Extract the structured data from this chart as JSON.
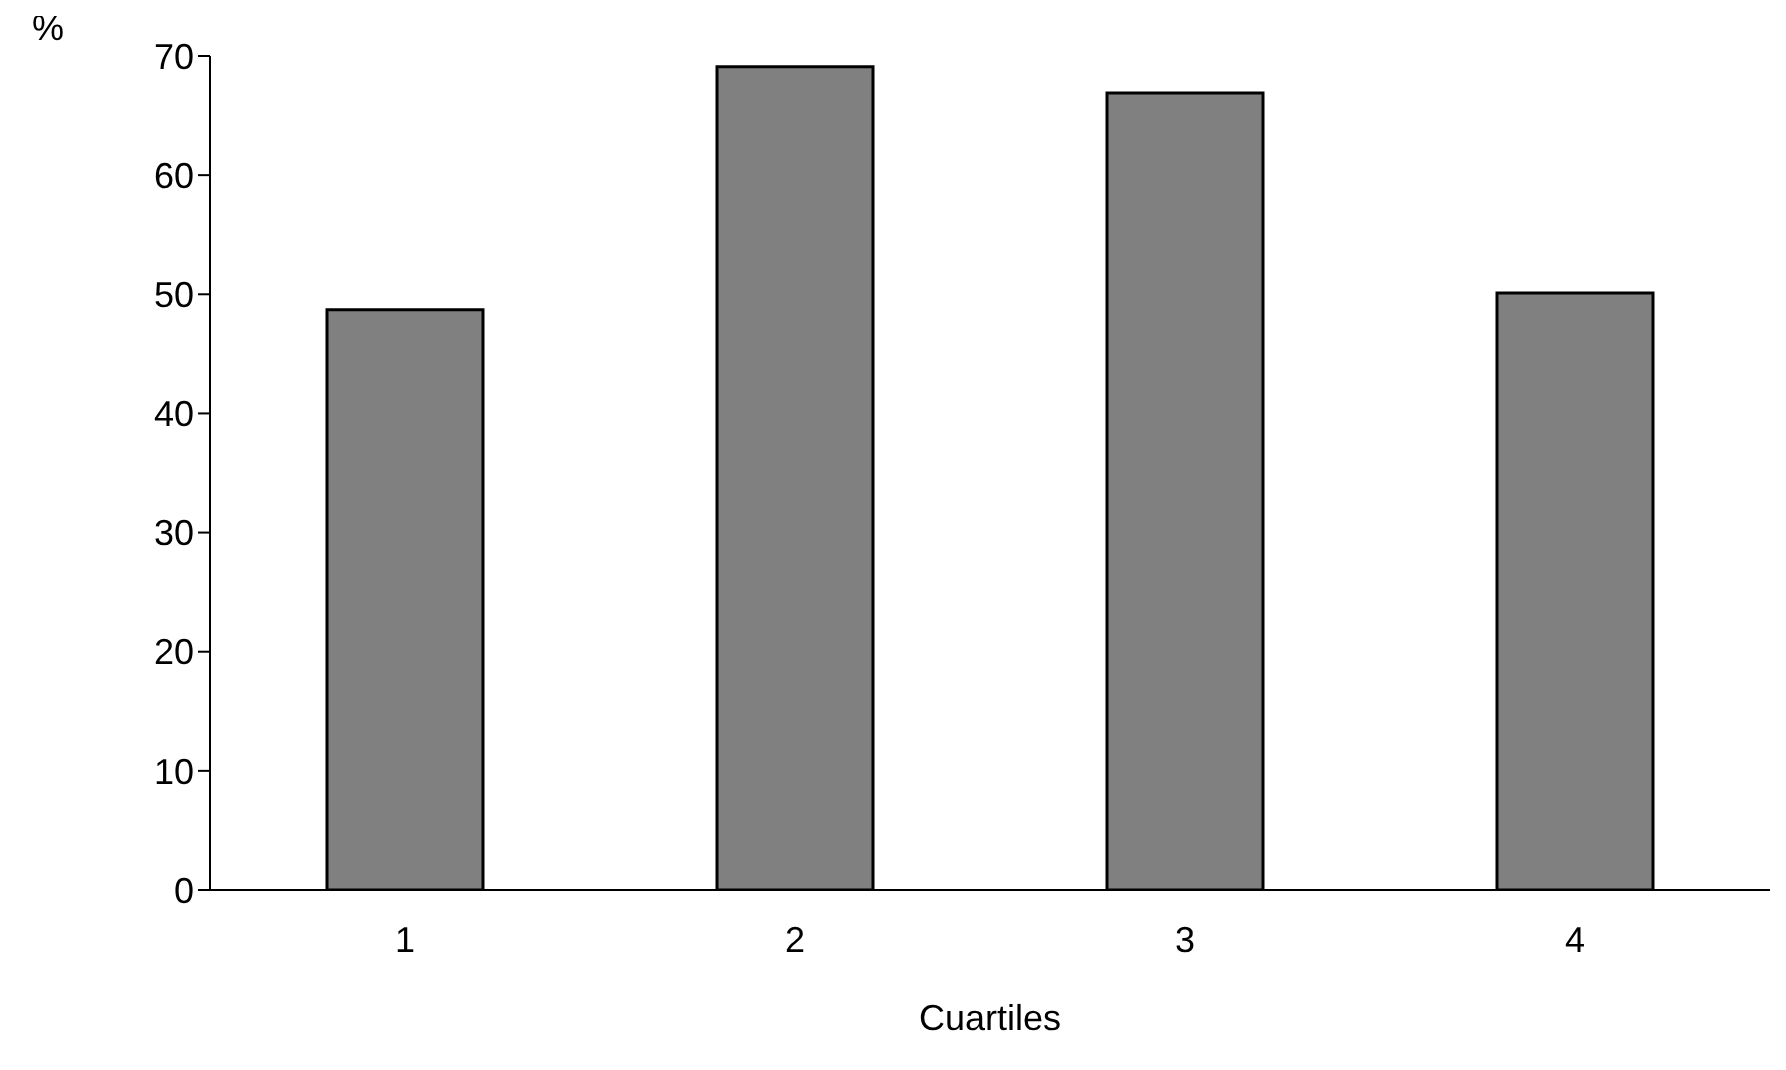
{
  "chart_data": {
    "type": "bar",
    "xlabel": "Cuartiles",
    "ylabel": "%",
    "categories": [
      "1",
      "2",
      "3",
      "4"
    ],
    "values": [
      48.7,
      69.1,
      66.9,
      50.1
    ],
    "color": "#808080",
    "ylim": [
      0,
      70
    ],
    "yticks": [
      0,
      10,
      20,
      30,
      40,
      50,
      60,
      70
    ],
    "grid": false,
    "legend": false
  }
}
